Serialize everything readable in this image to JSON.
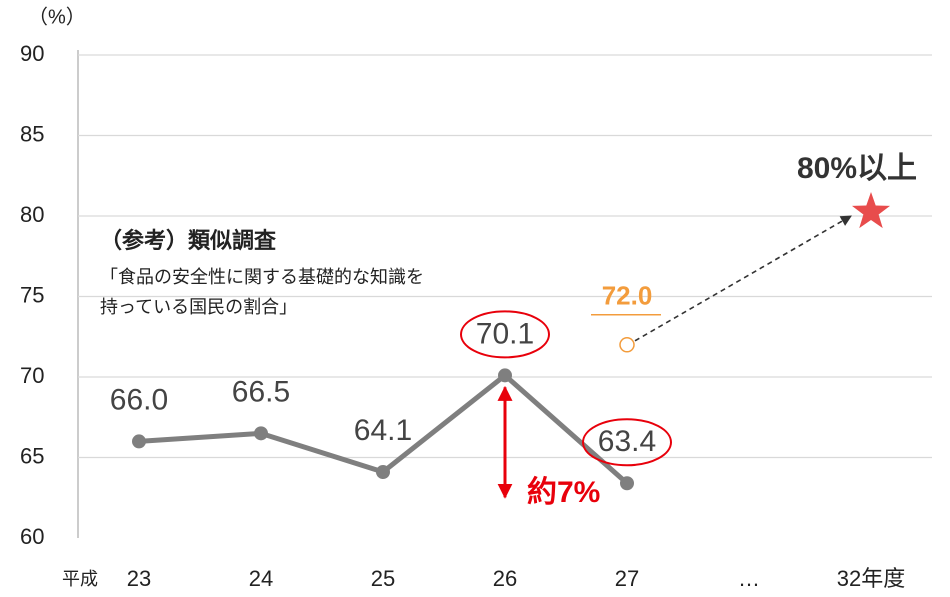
{
  "chart_data": {
    "type": "line",
    "unit_label": "（%）",
    "xlabel": "平成",
    "categories": [
      "23",
      "24",
      "25",
      "26",
      "27",
      "…",
      "32年度"
    ],
    "series": [
      {
        "color": "#7f7f7f",
        "marker": "circle",
        "values": [
          66.0,
          66.5,
          64.1,
          70.1,
          63.4,
          null,
          null
        ],
        "value_labels": [
          "66.0",
          "66.5",
          "64.1",
          "70.1",
          "63.4",
          null,
          null
        ]
      },
      {
        "color": "#f39c3c",
        "marker": "hollow",
        "values": [
          null,
          null,
          null,
          null,
          72.0,
          null,
          null
        ],
        "value_labels": [
          null,
          null,
          null,
          null,
          "72.0",
          null,
          null
        ]
      },
      {
        "color": "#e84c4c",
        "marker": "star",
        "values": [
          null,
          null,
          null,
          null,
          null,
          null,
          80
        ],
        "value_labels": [
          null,
          null,
          null,
          null,
          null,
          null,
          "80%以上"
        ]
      }
    ],
    "highlight_indices": [
      3,
      4
    ],
    "annotations": [
      "（参考）類似調査",
      "「食品の安全性に関する基礎的な知識を",
      "持っている国民の割合」",
      "約7%"
    ],
    "ylim": [
      60,
      90
    ],
    "yticks": [
      60,
      65,
      70,
      75,
      80,
      85,
      90
    ],
    "grid": true
  }
}
